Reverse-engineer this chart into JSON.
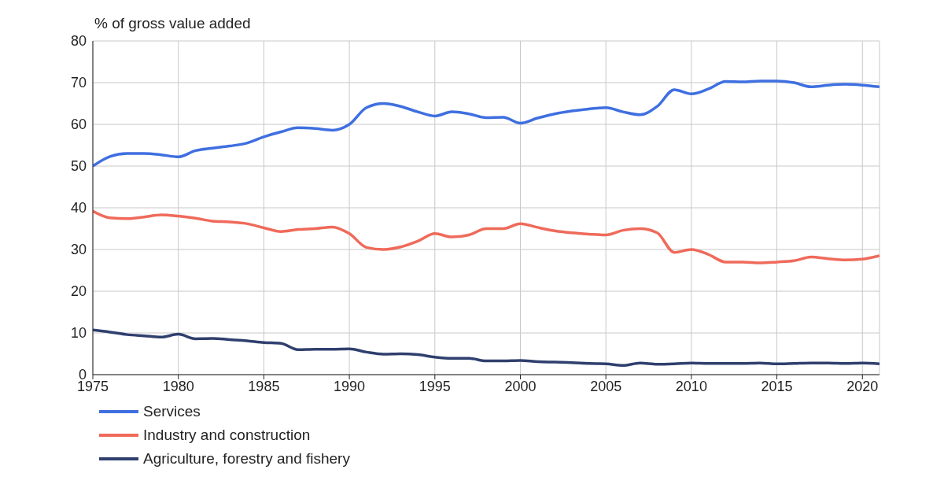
{
  "chart_data": {
    "type": "line",
    "ylabel": "% of gross value added",
    "x": [
      1975,
      1976,
      1977,
      1978,
      1979,
      1980,
      1981,
      1982,
      1983,
      1984,
      1985,
      1986,
      1987,
      1988,
      1989,
      1990,
      1991,
      1992,
      1993,
      1994,
      1995,
      1996,
      1997,
      1998,
      1999,
      2000,
      2001,
      2002,
      2003,
      2004,
      2005,
      2006,
      2007,
      2008,
      2009,
      2010,
      2011,
      2012,
      2013,
      2014,
      2015,
      2016,
      2017,
      2018,
      2019,
      2020,
      2021
    ],
    "series": [
      {
        "name": "Services",
        "color": "#3f6fe0",
        "values": [
          50,
          52.3,
          53,
          53,
          52.7,
          52.2,
          53.7,
          54.3,
          54.8,
          55.5,
          57,
          58.2,
          59.2,
          59,
          58.6,
          60,
          64,
          65,
          64.3,
          63,
          62,
          63,
          62.5,
          61.6,
          61.7,
          60.3,
          61.5,
          62.5,
          63.2,
          63.7,
          64,
          63,
          62.3,
          64.3,
          68.3,
          67.3,
          68.5,
          70.3,
          70.2,
          70.4,
          70.4,
          70,
          69,
          69.4,
          69.6,
          69.4,
          69
        ]
      },
      {
        "name": "Industry and construction",
        "color": "#ef6a5a",
        "values": [
          39.2,
          37.6,
          37.4,
          37.8,
          38.3,
          38,
          37.5,
          36.8,
          36.6,
          36.2,
          35.2,
          34.3,
          34.8,
          35,
          35.4,
          33.8,
          30.5,
          30,
          30.6,
          32,
          33.8,
          33,
          33.5,
          35,
          35,
          36.2,
          35.3,
          34.5,
          34,
          33.7,
          33.5,
          34.6,
          35,
          34,
          29.3,
          30,
          28.8,
          27,
          27,
          26.8,
          27,
          27.3,
          28.2,
          27.8,
          27.5,
          27.7,
          28.5
        ]
      },
      {
        "name": "Agriculture, forestry and fishery",
        "color": "#2f3f6e",
        "values": [
          10.7,
          10.2,
          9.6,
          9.3,
          9,
          9.7,
          8.6,
          8.7,
          8.4,
          8.1,
          7.7,
          7.5,
          6,
          6.1,
          6.1,
          6.2,
          5.4,
          4.9,
          5,
          4.8,
          4.2,
          3.9,
          3.9,
          3.3,
          3.3,
          3.4,
          3.1,
          3,
          2.9,
          2.7,
          2.6,
          2.2,
          2.8,
          2.5,
          2.6,
          2.8,
          2.7,
          2.7,
          2.7,
          2.8,
          2.6,
          2.7,
          2.8,
          2.8,
          2.7,
          2.8,
          2.6
        ]
      }
    ],
    "xlim": [
      1975,
      2021
    ],
    "xticks": [
      1975,
      1980,
      1985,
      1990,
      1995,
      2000,
      2005,
      2010,
      2015,
      2020
    ],
    "ylim": [
      0,
      80
    ],
    "yticks": [
      0,
      10,
      20,
      30,
      40,
      50,
      60,
      70,
      80
    ],
    "grid": true,
    "legend": "bottom left",
    "marker": "none",
    "line_style": "solid"
  }
}
